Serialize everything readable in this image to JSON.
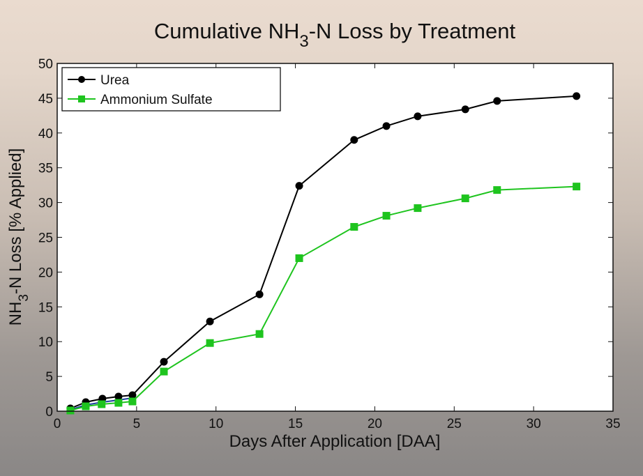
{
  "chart_data": {
    "type": "line",
    "title": {
      "main": "Cumulative NH",
      "sub": "3",
      "rest": "-N Loss by Treatment"
    },
    "xlabel": "Days After Application [DAA]",
    "ylabel": {
      "main": "NH",
      "sub": "3",
      "rest": "-N Loss [% Applied]"
    },
    "xlim": [
      0,
      35
    ],
    "ylim": [
      0,
      50
    ],
    "xticks": [
      0,
      5,
      10,
      15,
      20,
      25,
      30,
      35
    ],
    "yticks": [
      0,
      5,
      10,
      15,
      20,
      25,
      30,
      35,
      40,
      45,
      50
    ],
    "grid": false,
    "legend_position": "top-left",
    "series": [
      {
        "name": "Urea",
        "color": "#000000",
        "marker": "circle",
        "in_legend": true,
        "x": [
          0.83,
          1.8,
          2.85,
          3.86,
          4.74,
          6.72,
          9.62,
          12.74,
          15.24,
          18.7,
          20.73,
          22.7,
          25.7,
          27.7,
          32.7
        ],
        "y": [
          0.4,
          1.3,
          1.8,
          2.1,
          2.3,
          7.1,
          12.9,
          16.8,
          32.4,
          39.0,
          41.0,
          42.4,
          43.4,
          44.6,
          45.3
        ]
      },
      {
        "name": "",
        "color": "#1f3f9f",
        "marker": "none",
        "in_legend": false,
        "x": [
          0.83,
          1.8,
          2.85,
          3.86,
          4.74
        ],
        "y": [
          0.2,
          0.9,
          1.3,
          1.6,
          1.9
        ]
      },
      {
        "name": "Ammonium Sulfate",
        "color": "#1ec41e",
        "marker": "square",
        "in_legend": true,
        "x": [
          0.83,
          1.8,
          2.8,
          3.86,
          4.74,
          6.72,
          9.62,
          12.74,
          15.24,
          18.7,
          20.73,
          22.7,
          25.7,
          27.7,
          32.7
        ],
        "y": [
          0.1,
          0.7,
          1.0,
          1.2,
          1.4,
          5.7,
          9.8,
          11.1,
          22.0,
          26.5,
          28.1,
          29.2,
          30.6,
          31.8,
          32.3
        ]
      }
    ]
  }
}
